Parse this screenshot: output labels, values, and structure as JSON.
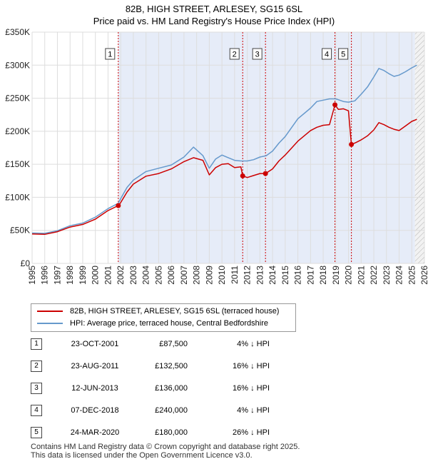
{
  "title": {
    "line1": "82B, HIGH STREET, ARLESEY, SG15 6SL",
    "line2": "Price paid vs. HM Land Registry's House Price Index (HPI)"
  },
  "colors": {
    "price_line": "#cc0000",
    "hpi_line": "#6699cc",
    "shade": "#e6ecf8",
    "vline": "#cc0000",
    "grid": "#dddddd"
  },
  "legend": {
    "price_label": "82B, HIGH STREET, ARLESEY, SG15 6SL (terraced house)",
    "hpi_label": "HPI: Average price, terraced house, Central Bedfordshire"
  },
  "sales": [
    {
      "num": "1",
      "date": "23-OCT-2001",
      "price": "£87,500",
      "hpi": "4% ↓ HPI"
    },
    {
      "num": "2",
      "date": "23-AUG-2011",
      "price": "£132,500",
      "hpi": "16% ↓ HPI"
    },
    {
      "num": "3",
      "date": "12-JUN-2013",
      "price": "£136,000",
      "hpi": "16% ↓ HPI"
    },
    {
      "num": "4",
      "date": "07-DEC-2018",
      "price": "£240,000",
      "hpi": "4% ↓ HPI"
    },
    {
      "num": "5",
      "date": "24-MAR-2020",
      "price": "£180,000",
      "hpi": "26% ↓ HPI"
    }
  ],
  "footer": {
    "line1": "Contains HM Land Registry data © Crown copyright and database right 2025.",
    "line2": "This data is licensed under the Open Government Licence v3.0."
  },
  "chart_data": {
    "type": "line",
    "title": "82B, HIGH STREET, ARLESEY, SG15 6SL",
    "subtitle": "Price paid vs. HM Land Registry's House Price Index (HPI)",
    "xlabel": "",
    "ylabel": "",
    "xlim": [
      1995,
      2026
    ],
    "ylim": [
      0,
      350000
    ],
    "y_ticks": [
      0,
      50000,
      100000,
      150000,
      200000,
      250000,
      300000,
      350000
    ],
    "y_tick_labels": [
      "£0",
      "£50K",
      "£100K",
      "£150K",
      "£200K",
      "£250K",
      "£300K",
      "£350K"
    ],
    "x_ticks": [
      1995,
      1996,
      1997,
      1998,
      1999,
      2000,
      2001,
      2002,
      2003,
      2004,
      2005,
      2006,
      2007,
      2008,
      2009,
      2010,
      2011,
      2012,
      2013,
      2014,
      2015,
      2016,
      2017,
      2018,
      2019,
      2020,
      2021,
      2022,
      2023,
      2024,
      2025,
      2026
    ],
    "shaded_ranges": [
      [
        2001.81,
        2025.25
      ]
    ],
    "hatched_from": 2025.25,
    "markers": [
      {
        "label": "1",
        "x": 2001.81,
        "y": 87500
      },
      {
        "label": "2",
        "x": 2011.64,
        "y": 132500
      },
      {
        "label": "3",
        "x": 2013.44,
        "y": 136000
      },
      {
        "label": "4",
        "x": 2018.93,
        "y": 240000
      },
      {
        "label": "5",
        "x": 2020.23,
        "y": 180000
      }
    ],
    "series": [
      {
        "name": "82B, HIGH STREET, ARLESEY, SG15 6SL (terraced house)",
        "color": "#cc0000",
        "x": [
          1995,
          1996,
          1997,
          1998,
          1999,
          2000,
          2001,
          2001.81,
          2002,
          2002.5,
          2003,
          2004,
          2005,
          2006,
          2007,
          2007.75,
          2008.5,
          2009,
          2009.5,
          2010,
          2010.5,
          2011,
          2011.5,
          2011.64,
          2012,
          2012.5,
          2013,
          2013.44,
          2014,
          2014.5,
          2015,
          2016,
          2017,
          2017.5,
          2018,
          2018.5,
          2018.93,
          2019.2,
          2019.6,
          2020.0,
          2020.23,
          2020.6,
          2021,
          2021.5,
          2022,
          2022.4,
          2022.8,
          2023.2,
          2023.6,
          2024,
          2024.5,
          2025,
          2025.4
        ],
        "y": [
          44500,
          44000,
          48000,
          55000,
          59000,
          67000,
          80000,
          87500,
          92000,
          108000,
          120000,
          132000,
          136000,
          143000,
          154000,
          160000,
          156000,
          134000,
          145000,
          150000,
          151000,
          145000,
          146000,
          132500,
          130000,
          133000,
          136000,
          136000,
          143000,
          155000,
          164000,
          185000,
          201000,
          206000,
          209000,
          210000,
          240000,
          233000,
          234000,
          231000,
          180000,
          183000,
          187000,
          193000,
          202000,
          213000,
          210000,
          206000,
          203000,
          201000,
          208000,
          215000,
          218000
        ]
      },
      {
        "name": "HPI: Average price, terraced house, Central Bedfordshire",
        "color": "#6699cc",
        "x": [
          1995,
          1996,
          1997,
          1998,
          1999,
          2000,
          2001,
          2001.81,
          2002,
          2002.5,
          2003,
          2004,
          2005,
          2006,
          2007,
          2007.75,
          2008.5,
          2009,
          2009.5,
          2010,
          2010.5,
          2011,
          2011.5,
          2012,
          2012.5,
          2013,
          2013.5,
          2014,
          2014.5,
          2015,
          2016,
          2017,
          2017.5,
          2018,
          2018.5,
          2019,
          2019.6,
          2020.0,
          2020.5,
          2021,
          2021.5,
          2022,
          2022.4,
          2022.8,
          2023.2,
          2023.6,
          2024,
          2024.5,
          2025,
          2025.4
        ],
        "y": [
          46000,
          45500,
          49500,
          57000,
          61000,
          70000,
          83000,
          91000,
          98000,
          115000,
          126000,
          139000,
          144000,
          149000,
          161000,
          176000,
          163000,
          144000,
          158000,
          164000,
          160000,
          156000,
          155000,
          155000,
          157000,
          161000,
          163000,
          170000,
          182000,
          192000,
          219000,
          235000,
          245000,
          247000,
          249000,
          249000,
          245000,
          244000,
          246000,
          256000,
          267000,
          282000,
          295000,
          292000,
          287000,
          283000,
          285000,
          290000,
          296000,
          300000
        ]
      }
    ]
  }
}
